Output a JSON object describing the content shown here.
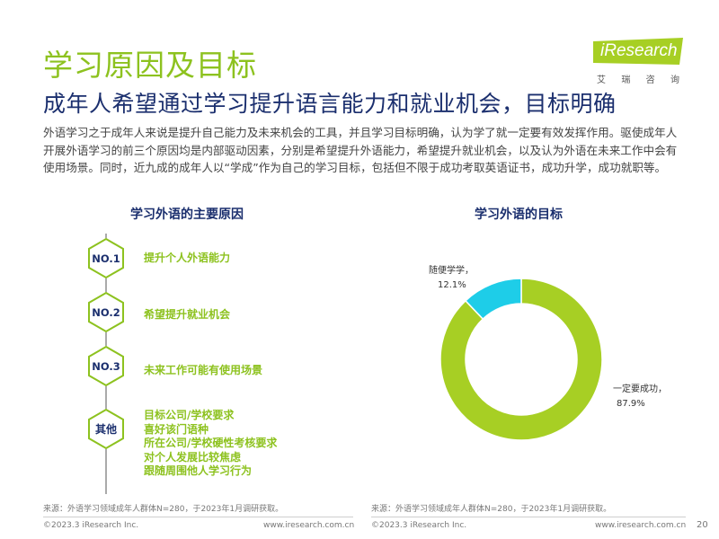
{
  "header": {
    "title": "学习原因及目标",
    "subtitle": "成年人希望通过学习提升语言能力和就业机会，目标明确",
    "body": "外语学习之于成年人来说是提升自己能力及未来机会的工具，并且学习目标明确，认为学了就一定要有效发挥作用。驱使成年人开展外语学习的前三个原因均是内部驱动因素，分别是希望提升外语能力，希望提升就业机会，以及认为外语在未来工作中会有使用场景。同时，近九成的成年人以“学成”作为自己的学习目标，包括但不限于成功考取英语证书，成功升学，成功就职等。"
  },
  "logo": {
    "text": "iResearch",
    "cn": [
      "艾",
      "瑞",
      "咨",
      "询"
    ]
  },
  "left": {
    "title": "学习外语的主要原因",
    "reasons": [
      {
        "badge": "NO.1",
        "label": "提升个人外语能力"
      },
      {
        "badge": "NO.2",
        "label": "希望提升就业机会"
      },
      {
        "badge": "NO.3",
        "label": "未来工作可能有使用场景"
      }
    ],
    "other_badge": "其他",
    "other_items": [
      "目标公司/学校要求",
      "喜好该门语种",
      "所在公司/学校硬性考核要求",
      "对个人发展比较焦虑",
      "跟随周围他人学习行为"
    ],
    "source": "来源：外语学习领域成年人群体N=280，于2023年1月调研获取。",
    "copyright": "©2023.3 iResearch Inc.",
    "website": "www.iresearch.com.cn"
  },
  "right": {
    "title": "学习外语的目标",
    "source": "来源：外语学习领域成年人群体N=280，于2023年1月调研获取。",
    "copyright": "©2023.3 iResearch Inc.",
    "website": "www.iresearch.com.cn"
  },
  "page_number": "20",
  "colors": {
    "green": "#8dc21f",
    "cyan": "#1ecde8",
    "navy": "#1b2f6e"
  },
  "chart_data": {
    "type": "pie",
    "title": "学习外语的目标",
    "donut": true,
    "slices": [
      {
        "label": "一定要成功，",
        "value": 87.9,
        "display": "87.9%",
        "color": "#a7cf24"
      },
      {
        "label": "随便学学，",
        "value": 12.1,
        "display": "12.1%",
        "color": "#1ecde8"
      }
    ]
  }
}
